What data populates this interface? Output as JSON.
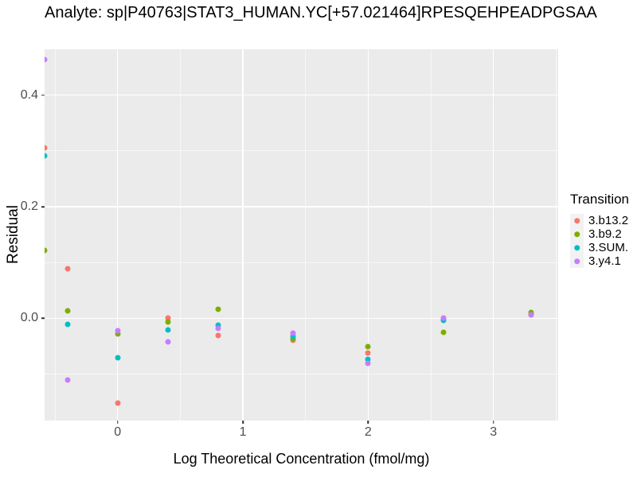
{
  "title": "Analyte: sp|P40763|STAT3_HUMAN.YC[+57.021464]RPESQEHPEADPGSAA",
  "legend": {
    "title": "Transition",
    "items": [
      {
        "label": "3.b13.2",
        "color": "#F8766D"
      },
      {
        "label": "3.b9.2",
        "color": "#7CAE00"
      },
      {
        "label": "3.SUM.",
        "color": "#00BFC4"
      },
      {
        "label": "3.y4.1",
        "color": "#C77CFF"
      }
    ]
  },
  "chart_data": {
    "type": "scatter",
    "title": "Analyte: sp|P40763|STAT3_HUMAN.YC[+57.021464]RPESQEHPEADPGSAA",
    "xlabel": "Log Theoretical Concentration (fmol/mg)",
    "ylabel": "Residual",
    "xlim": [
      -0.583,
      3.517
    ],
    "ylim": [
      -0.183,
      0.482
    ],
    "grid": true,
    "legend_position": "right",
    "panel_bg": "#EBEBEB",
    "grid_color": "#FFFFFF",
    "x_ticks": {
      "major": [
        0,
        1,
        2,
        3
      ],
      "labels": [
        "0",
        "1",
        "2",
        "3"
      ],
      "minor": [
        -0.5,
        0.5,
        1.5,
        2.5,
        3.5
      ]
    },
    "y_ticks": {
      "major": [
        0.0,
        0.2,
        0.4
      ],
      "labels": [
        "0.0",
        "0.2",
        "0.4"
      ],
      "minor": [
        -0.1,
        0.1,
        0.3
      ]
    },
    "series": [
      {
        "name": "3.b13.2",
        "color": "#F8766D",
        "points": [
          [
            -0.583,
            0.305
          ],
          [
            -0.4,
            0.089
          ],
          [
            0.0,
            -0.151
          ],
          [
            0.4,
            0.0
          ],
          [
            0.8,
            -0.031
          ],
          [
            1.4,
            -0.039
          ],
          [
            2.0,
            -0.062
          ],
          [
            2.6,
            -0.001
          ],
          [
            3.3,
            0.008
          ]
        ]
      },
      {
        "name": "3.b9.2",
        "color": "#7CAE00",
        "points": [
          [
            -0.583,
            0.122
          ],
          [
            -0.4,
            0.014
          ],
          [
            0.0,
            -0.028
          ],
          [
            0.4,
            -0.006
          ],
          [
            0.8,
            0.017
          ],
          [
            1.4,
            -0.036
          ],
          [
            2.0,
            -0.05
          ],
          [
            2.6,
            -0.025
          ],
          [
            3.3,
            0.01
          ]
        ]
      },
      {
        "name": "3.SUM.",
        "color": "#00BFC4",
        "points": [
          [
            -0.583,
            0.291
          ],
          [
            -0.4,
            -0.01
          ],
          [
            0.0,
            -0.07
          ],
          [
            0.4,
            -0.02
          ],
          [
            0.8,
            -0.012
          ],
          [
            1.4,
            -0.032
          ],
          [
            2.0,
            -0.073
          ],
          [
            2.6,
            -0.004
          ],
          [
            3.3,
            0.007
          ]
        ]
      },
      {
        "name": "3.y4.1",
        "color": "#C77CFF",
        "points": [
          [
            -0.583,
            0.463
          ],
          [
            -0.4,
            -0.11
          ],
          [
            0.0,
            -0.022
          ],
          [
            0.4,
            -0.042
          ],
          [
            0.8,
            -0.018
          ],
          [
            1.4,
            -0.026
          ],
          [
            2.0,
            -0.08
          ],
          [
            2.6,
            0.0
          ],
          [
            3.3,
            0.006
          ]
        ]
      }
    ]
  }
}
